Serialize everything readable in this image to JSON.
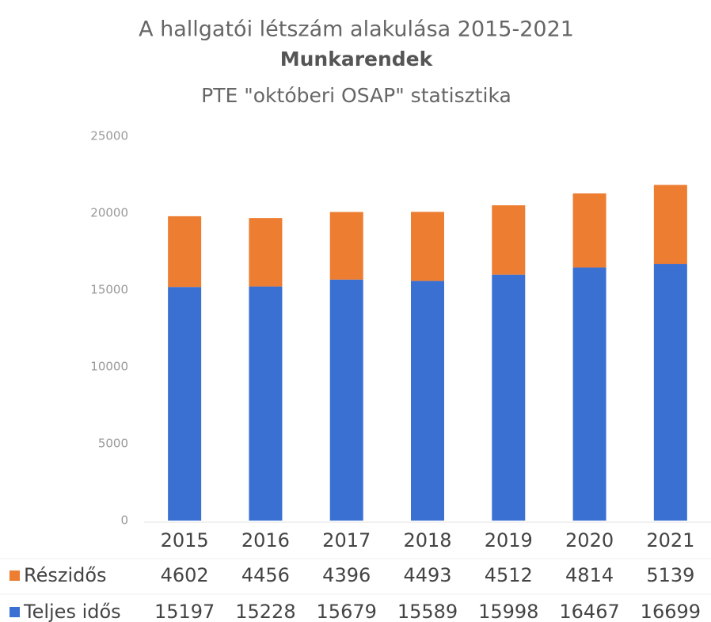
{
  "chart_data": {
    "type": "stacked_bar",
    "title": "A hallgatói létszám alakulása 2015-2021",
    "subtitle": "Munkarendek",
    "caption": "PTE \"októberi OSAP\" statisztika",
    "categories": [
      "2015",
      "2016",
      "2017",
      "2018",
      "2019",
      "2020",
      "2021"
    ],
    "series": [
      {
        "name": "Részidős",
        "color": "#ed7d31",
        "values": [
          4602,
          4456,
          4396,
          4493,
          4512,
          4814,
          5139
        ]
      },
      {
        "name": "Teljes idős",
        "color": "#3a70d2",
        "values": [
          15197,
          15228,
          15679,
          15589,
          15998,
          16467,
          16699
        ]
      }
    ],
    "ylim": [
      0,
      25000
    ],
    "yticks": [
      0,
      5000,
      10000,
      15000,
      20000,
      25000
    ],
    "grid": false
  }
}
